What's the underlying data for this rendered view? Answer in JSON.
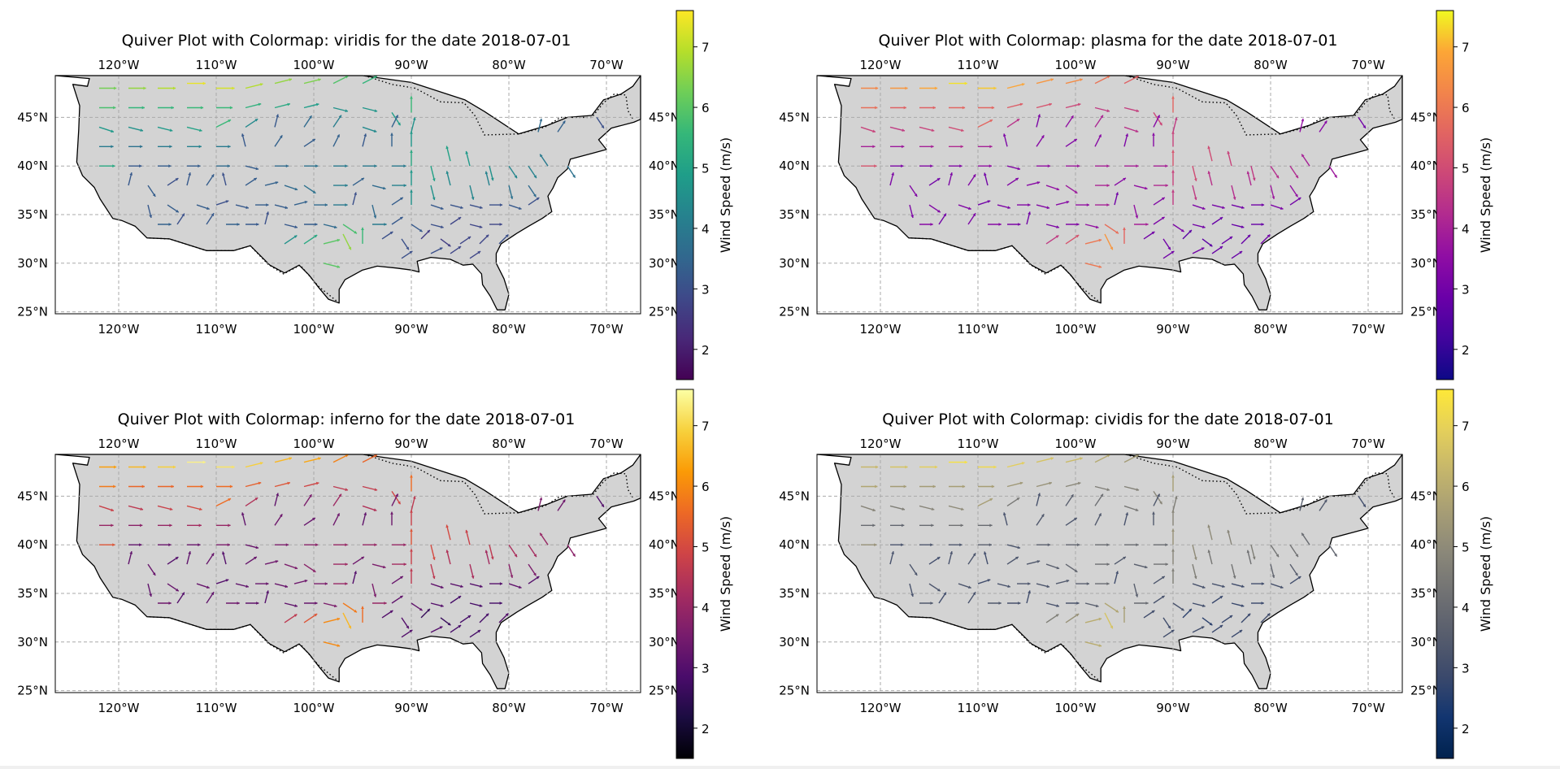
{
  "figure": {
    "xticks": [
      -120,
      -110,
      -100,
      -90,
      -80,
      -70
    ],
    "xtick_labels": [
      "120°W",
      "110°W",
      "100°W",
      "90°W",
      "80°W",
      "70°W"
    ],
    "yticks": [
      25,
      30,
      35,
      40,
      45
    ],
    "ytick_labels": [
      "25°N",
      "30°N",
      "35°N",
      "40°N",
      "45°N"
    ],
    "lon_range": [
      -126.5,
      -66.5
    ],
    "lat_range": [
      24.8,
      49.3
    ],
    "land_color": "#d3d3d3",
    "grid_color": "#aaaaaa"
  },
  "chart_data": [
    {
      "type": "quiver",
      "title": "Quiver Plot with Colormap: viridis for the date 2018-07-01",
      "colormap": "viridis",
      "colorbar_label": "Wind Speed (m/s)",
      "colorbar_range": [
        1.5,
        7.6
      ],
      "colorbar_ticks": [
        2,
        3,
        4,
        5,
        6,
        7
      ],
      "grid": true
    },
    {
      "type": "quiver",
      "title": "Quiver Plot with Colormap: plasma for the date 2018-07-01",
      "colormap": "plasma",
      "colorbar_label": "Wind Speed (m/s)",
      "colorbar_range": [
        1.5,
        7.6
      ],
      "colorbar_ticks": [
        2,
        3,
        4,
        5,
        6,
        7
      ],
      "grid": true
    },
    {
      "type": "quiver",
      "title": "Quiver Plot with Colormap: inferno for the date 2018-07-01",
      "colormap": "inferno",
      "colorbar_label": "Wind Speed (m/s)",
      "colorbar_range": [
        1.5,
        7.6
      ],
      "colorbar_ticks": [
        2,
        3,
        4,
        5,
        6,
        7
      ],
      "grid": true
    },
    {
      "type": "quiver",
      "title": "Quiver Plot with Colormap: cividis for the date 2018-07-01",
      "colormap": "cividis",
      "colorbar_label": "Wind Speed (m/s)",
      "colorbar_range": [
        1.5,
        7.6
      ],
      "colorbar_ticks": [
        2,
        3,
        4,
        5,
        6,
        7
      ],
      "grid": true
    }
  ],
  "wind_field": {
    "vectors": [
      [
        -122,
        48,
        4,
        0,
        6.3
      ],
      [
        -119,
        48,
        4,
        0,
        6.6
      ],
      [
        -116,
        48,
        4,
        0,
        6.9
      ],
      [
        -113,
        48.5,
        4,
        0,
        7.4
      ],
      [
        -110,
        48,
        4,
        0,
        7.2
      ],
      [
        -107,
        48,
        4,
        1,
        6.9
      ],
      [
        -104,
        48.5,
        4,
        1,
        6.6
      ],
      [
        -101,
        48.5,
        4,
        1,
        6.4
      ],
      [
        -98,
        48.5,
        4,
        2,
        5.9
      ],
      [
        -95,
        48.5,
        4,
        2,
        5.5
      ],
      [
        -122,
        46,
        4,
        0,
        5.8
      ],
      [
        -119,
        46,
        4,
        0,
        5.5
      ],
      [
        -116,
        46,
        4,
        0,
        5.5
      ],
      [
        -113,
        46,
        4,
        0,
        5.6
      ],
      [
        -110,
        46,
        4,
        0,
        5.6
      ],
      [
        -107,
        46,
        4,
        1,
        5.4
      ],
      [
        -104,
        46,
        4,
        1,
        5.2
      ],
      [
        -101,
        46,
        4,
        1,
        4.9
      ],
      [
        -98,
        46,
        4,
        -1,
        4.6
      ],
      [
        -95,
        46,
        4,
        -1,
        4.7
      ],
      [
        -92,
        45.5,
        2,
        -3,
        4.9
      ],
      [
        -90,
        45.5,
        0,
        4,
        5.6
      ],
      [
        -122,
        44,
        3,
        -1,
        4.8
      ],
      [
        -119,
        44,
        4,
        -1,
        4.6
      ],
      [
        -116,
        44,
        4,
        -1,
        4.8
      ],
      [
        -113,
        44,
        4,
        -1,
        5.0
      ],
      [
        -110,
        44,
        4,
        2,
        5.6
      ],
      [
        -107,
        44,
        3,
        2,
        4.4
      ],
      [
        -104,
        44,
        1,
        4,
        3.2
      ],
      [
        -101,
        44,
        2,
        3,
        3.6
      ],
      [
        -98,
        44,
        2,
        3,
        4.1
      ],
      [
        -95,
        44,
        3,
        -1,
        4.4
      ],
      [
        -92,
        44,
        2,
        4,
        3.4
      ],
      [
        -90,
        43.5,
        1,
        4,
        4.6
      ],
      [
        -122,
        42,
        4,
        0,
        4.0
      ],
      [
        -119,
        42,
        4,
        0,
        3.8
      ],
      [
        -116,
        42,
        4,
        0,
        4.0
      ],
      [
        -113,
        42,
        4,
        0,
        4.2
      ],
      [
        -110,
        42,
        4,
        0,
        4.0
      ],
      [
        -107,
        42,
        -1,
        4,
        3.2
      ],
      [
        -104,
        42,
        2,
        3,
        3.4
      ],
      [
        -101,
        42,
        3,
        2,
        3.3
      ],
      [
        -98,
        42,
        2,
        4,
        3.4
      ],
      [
        -95,
        42,
        1,
        4,
        3.2
      ],
      [
        -92,
        42,
        0,
        4,
        3.4
      ],
      [
        -90,
        42,
        0,
        4,
        4.8
      ],
      [
        -77,
        43.5,
        1,
        4,
        3.6
      ],
      [
        -75,
        43.5,
        2,
        3,
        3.4
      ],
      [
        -71,
        45,
        2,
        -3,
        3.0
      ],
      [
        -122,
        40,
        4,
        0,
        5.2
      ],
      [
        -119,
        40,
        3,
        0,
        3.2
      ],
      [
        -116,
        40,
        4,
        0,
        3.3
      ],
      [
        -113,
        40,
        4,
        0,
        3.3
      ],
      [
        -110,
        40,
        4,
        0,
        3.6
      ],
      [
        -107,
        40,
        4,
        -1,
        3.3
      ],
      [
        -104,
        40,
        4,
        0,
        3.6
      ],
      [
        -101,
        40,
        4,
        0,
        3.8
      ],
      [
        -98,
        40,
        4,
        0,
        4.0
      ],
      [
        -95,
        40,
        4,
        0,
        4.0
      ],
      [
        -92,
        40,
        4,
        0,
        4.0
      ],
      [
        -90,
        40,
        0,
        4,
        5.2
      ],
      [
        -88,
        40,
        1,
        -4,
        5.0
      ],
      [
        -86,
        40.5,
        -1,
        4,
        5.0
      ],
      [
        -84,
        40,
        -1,
        4,
        4.8
      ],
      [
        -82,
        40,
        1,
        -4,
        4.6
      ],
      [
        -80,
        40,
        2,
        -3,
        4.3
      ],
      [
        -78,
        40,
        2,
        -3,
        4.2
      ],
      [
        -76,
        40,
        -2,
        3,
        4.0
      ],
      [
        -74,
        40,
        2,
        -3,
        3.8
      ],
      [
        -119,
        38,
        1,
        4,
        3.2
      ],
      [
        -117,
        38,
        2,
        -3,
        3.3
      ],
      [
        -115,
        38,
        3,
        2,
        3.0
      ],
      [
        -113,
        38,
        1,
        4,
        3.2
      ],
      [
        -111,
        38,
        2,
        3,
        3.3
      ],
      [
        -109,
        38,
        -1,
        4,
        3.0
      ],
      [
        -107,
        38,
        3,
        2,
        3.3
      ],
      [
        -105,
        38,
        4,
        1,
        3.4
      ],
      [
        -103,
        38,
        3,
        -1,
        3.6
      ],
      [
        -101,
        38,
        3,
        -2,
        3.8
      ],
      [
        -98,
        38,
        4,
        0,
        4.1
      ],
      [
        -96,
        38,
        3,
        2,
        3.4
      ],
      [
        -94,
        38,
        4,
        -1,
        3.6
      ],
      [
        -92,
        38,
        4,
        0,
        4.2
      ],
      [
        -90,
        38,
        0,
        4,
        4.8
      ],
      [
        -88,
        38,
        1,
        -4,
        4.6
      ],
      [
        -86,
        38,
        -1,
        4,
        4.4
      ],
      [
        -84,
        38,
        1,
        -4,
        4.3
      ],
      [
        -82,
        38,
        -1,
        4,
        4.2
      ],
      [
        -80,
        38,
        1,
        -4,
        3.8
      ],
      [
        -78,
        38,
        2,
        -3,
        3.6
      ],
      [
        -117,
        36,
        1,
        -4,
        3.2
      ],
      [
        -115,
        36,
        3,
        -2,
        3.3
      ],
      [
        -112,
        36,
        3,
        -1,
        3.3
      ],
      [
        -110,
        36,
        3,
        1,
        3.0
      ],
      [
        -108,
        36,
        4,
        -1,
        3.2
      ],
      [
        -106,
        36,
        4,
        0,
        3.3
      ],
      [
        -104,
        36,
        4,
        -1,
        3.3
      ],
      [
        -102,
        36,
        4,
        1,
        3.4
      ],
      [
        -100,
        36,
        4,
        0,
        3.6
      ],
      [
        -98,
        36,
        4,
        0,
        4.0
      ],
      [
        -96,
        36,
        1,
        4,
        3.0
      ],
      [
        -94,
        36,
        1,
        -4,
        3.6
      ],
      [
        -92,
        36,
        3,
        2,
        3.3
      ],
      [
        -90,
        36,
        0,
        4,
        4.6
      ],
      [
        -88,
        36,
        3,
        -1,
        3.2
      ],
      [
        -86,
        36,
        4,
        -1,
        3.1
      ],
      [
        -84,
        36,
        4,
        -1,
        3.0
      ],
      [
        -82,
        36,
        4,
        0,
        3.0
      ],
      [
        -80,
        36,
        3,
        -1,
        3.2
      ],
      [
        -78,
        36,
        3,
        2,
        3.0
      ],
      [
        -116,
        34,
        2,
        0,
        3.4
      ],
      [
        -114,
        34,
        2,
        3,
        3.0
      ],
      [
        -111,
        34,
        2,
        3,
        3.2
      ],
      [
        -109,
        34,
        4,
        0,
        3.4
      ],
      [
        -107,
        34,
        4,
        0,
        3.2
      ],
      [
        -105,
        34,
        1,
        4,
        3.0
      ],
      [
        -103,
        34,
        4,
        -1,
        3.2
      ],
      [
        -101,
        34,
        4,
        0,
        3.3
      ],
      [
        -99,
        34,
        4,
        -1,
        3.6
      ],
      [
        -97,
        34,
        3,
        -2,
        5.8
      ],
      [
        -94,
        34,
        4,
        0,
        4.0
      ],
      [
        -92,
        34,
        3,
        2,
        3.2
      ],
      [
        -90,
        34,
        3,
        -2,
        3.2
      ],
      [
        -88,
        34,
        4,
        -1,
        3.0
      ],
      [
        -86,
        34,
        3,
        2,
        2.8
      ],
      [
        -84,
        34,
        4,
        -1,
        2.8
      ],
      [
        -82,
        34,
        4,
        0,
        2.8
      ],
      [
        -103,
        32,
        3,
        2,
        4.6
      ],
      [
        -101,
        32,
        3,
        2,
        5.2
      ],
      [
        -99,
        32,
        4,
        1,
        6.0
      ],
      [
        -97,
        33,
        2,
        -4,
        6.6
      ],
      [
        -95,
        32,
        0,
        4,
        5.6
      ],
      [
        -93,
        32.5,
        3,
        2,
        3.0
      ],
      [
        -91,
        32.5,
        2,
        -3,
        3.0
      ],
      [
        -89,
        32.5,
        3,
        3,
        2.6
      ],
      [
        -87,
        32.5,
        4,
        -3,
        2.6
      ],
      [
        -85,
        32,
        3,
        2,
        2.8
      ],
      [
        -83,
        32,
        3,
        3,
        2.8
      ],
      [
        -81,
        32,
        3,
        3,
        3.0
      ],
      [
        -99,
        30,
        4,
        -1,
        6.0
      ],
      [
        -91,
        30.5,
        3,
        2,
        3.0
      ],
      [
        -88,
        31,
        4,
        2,
        3.0
      ],
      [
        -86,
        31,
        3,
        2,
        2.8
      ],
      [
        -84,
        30.5,
        3,
        2,
        2.8
      ]
    ]
  }
}
